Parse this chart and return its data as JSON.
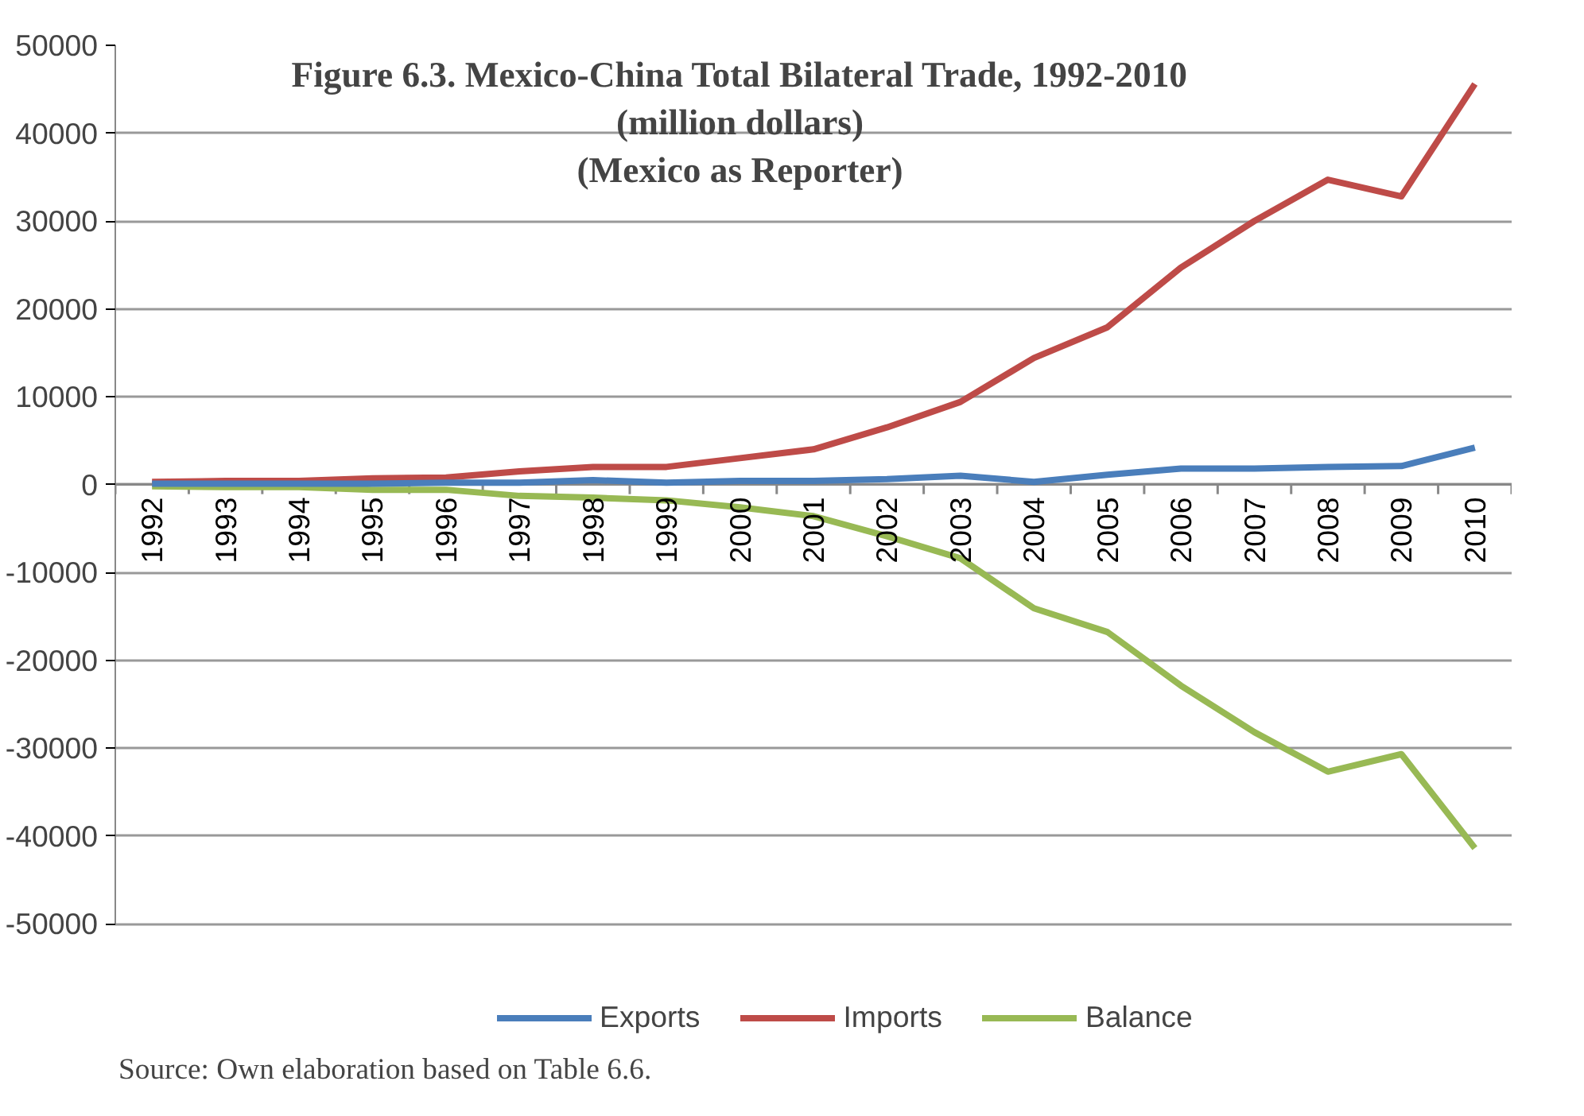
{
  "chart_data": {
    "type": "line",
    "title": "Figure 6.3. Mexico-China Total Bilateral Trade, 1992-2010\n(million dollars)\n(Mexico as Reporter)",
    "categories": [
      "1992",
      "1993",
      "1994",
      "1995",
      "1996",
      "1997",
      "1998",
      "1999",
      "2000",
      "2001",
      "2002",
      "2003",
      "2004",
      "2005",
      "2006",
      "2007",
      "2008",
      "2009",
      "2010"
    ],
    "series": [
      {
        "name": "Exports",
        "color": "#4a7ebb",
        "values": [
          100,
          100,
          100,
          100,
          200,
          200,
          500,
          200,
          400,
          400,
          600,
          1000,
          300,
          1100,
          1800,
          1800,
          2000,
          2100,
          4200
        ]
      },
      {
        "name": "Imports",
        "color": "#be4b48",
        "values": [
          300,
          400,
          400,
          700,
          800,
          1500,
          2000,
          2000,
          3000,
          4000,
          6500,
          9400,
          14400,
          17900,
          24700,
          30000,
          34700,
          32800,
          45600
        ]
      },
      {
        "name": "Balance",
        "color": "#98b954",
        "values": [
          -200,
          -300,
          -300,
          -600,
          -600,
          -1300,
          -1500,
          -1800,
          -2600,
          -3600,
          -5900,
          -8400,
          -14100,
          -16800,
          -22900,
          -28200,
          -32700,
          -30700,
          -41400
        ]
      }
    ],
    "ylim": [
      -50000,
      50000
    ],
    "yticks": [
      -50000,
      -40000,
      -30000,
      -20000,
      -10000,
      0,
      10000,
      20000,
      30000,
      40000,
      50000
    ],
    "grid": "y",
    "legend": "bottom",
    "line_style": "solid",
    "annotations": [
      "Source: Own elaboration based on Table 6.6."
    ]
  }
}
